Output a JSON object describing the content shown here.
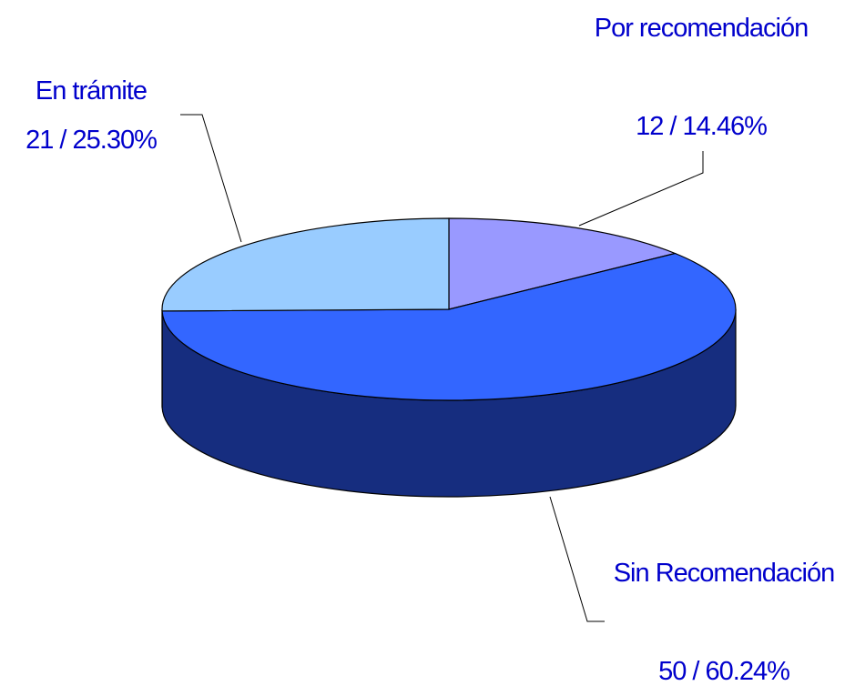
{
  "chart_data": {
    "type": "pie3d",
    "categories": [
      "Por recomendación",
      "Sin Recomendación",
      "En trámite"
    ],
    "values": [
      12,
      50,
      21
    ],
    "value_labels": [
      "12 / 14.46%",
      "50 / 60.24%",
      "21 / 25.30%"
    ],
    "colors": [
      "#9999ff",
      "#3366ff",
      "#99ccff"
    ]
  }
}
